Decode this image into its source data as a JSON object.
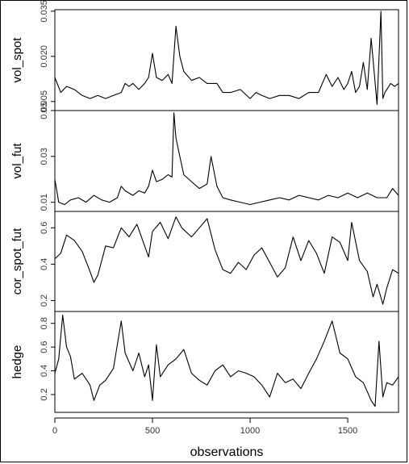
{
  "chart_data": {
    "type": "line",
    "xlabel": "observations",
    "xlim": [
      0,
      1760
    ],
    "x_ticks": [
      0,
      500,
      1000,
      1500
    ],
    "x_tick_labels": [
      "0",
      "500",
      "1000",
      "1500"
    ],
    "panels": [
      {
        "name": "vol_spot",
        "ylabel": "vol_spot",
        "ylim": [
          0.002,
          0.0355
        ],
        "y_ticks": [
          0.005,
          0.02,
          0.035
        ],
        "y_tick_labels": [
          "0.005",
          "0.020",
          "0.035"
        ],
        "x": [
          0,
          30,
          60,
          100,
          140,
          180,
          220,
          260,
          300,
          340,
          360,
          380,
          400,
          430,
          460,
          480,
          500,
          520,
          550,
          580,
          600,
          620,
          640,
          660,
          700,
          740,
          780,
          800,
          830,
          860,
          900,
          950,
          1000,
          1030,
          1060,
          1100,
          1150,
          1200,
          1250,
          1300,
          1350,
          1390,
          1420,
          1450,
          1480,
          1500,
          1520,
          1540,
          1560,
          1580,
          1600,
          1620,
          1650,
          1670,
          1680,
          1690,
          1700,
          1720,
          1740,
          1760
        ],
        "y": [
          0.013,
          0.008,
          0.01,
          0.009,
          0.007,
          0.006,
          0.007,
          0.006,
          0.007,
          0.008,
          0.011,
          0.01,
          0.011,
          0.009,
          0.011,
          0.013,
          0.021,
          0.013,
          0.012,
          0.014,
          0.011,
          0.03,
          0.02,
          0.015,
          0.012,
          0.013,
          0.011,
          0.011,
          0.011,
          0.008,
          0.008,
          0.009,
          0.006,
          0.008,
          0.007,
          0.006,
          0.007,
          0.007,
          0.006,
          0.008,
          0.008,
          0.014,
          0.01,
          0.013,
          0.009,
          0.011,
          0.015,
          0.008,
          0.01,
          0.018,
          0.009,
          0.026,
          0.004,
          0.035,
          0.006,
          0.008,
          0.009,
          0.011,
          0.01,
          0.011
        ]
      },
      {
        "name": "vol_fut",
        "ylabel": "vol_fut",
        "ylim": [
          0.006,
          0.05
        ],
        "y_ticks": [
          0.01,
          0.03,
          0.05
        ],
        "y_tick_labels": [
          "0.01",
          "0.03",
          "0.05"
        ],
        "x": [
          0,
          20,
          50,
          80,
          120,
          160,
          200,
          240,
          280,
          320,
          340,
          360,
          400,
          430,
          460,
          480,
          500,
          520,
          550,
          580,
          600,
          610,
          620,
          640,
          660,
          700,
          740,
          780,
          800,
          830,
          860,
          900,
          950,
          1000,
          1050,
          1100,
          1150,
          1200,
          1250,
          1300,
          1350,
          1400,
          1450,
          1500,
          1550,
          1600,
          1650,
          1700,
          1730,
          1760
        ],
        "y": [
          0.02,
          0.01,
          0.009,
          0.011,
          0.012,
          0.01,
          0.013,
          0.011,
          0.01,
          0.012,
          0.017,
          0.015,
          0.013,
          0.015,
          0.014,
          0.017,
          0.024,
          0.019,
          0.02,
          0.022,
          0.021,
          0.049,
          0.038,
          0.03,
          0.022,
          0.019,
          0.016,
          0.018,
          0.03,
          0.017,
          0.012,
          0.011,
          0.01,
          0.009,
          0.01,
          0.011,
          0.012,
          0.011,
          0.013,
          0.012,
          0.011,
          0.013,
          0.012,
          0.014,
          0.012,
          0.014,
          0.012,
          0.012,
          0.016,
          0.013
        ]
      },
      {
        "name": "cor_spot_fut",
        "ylabel": "cor_spot_fut",
        "ylim": [
          0.14,
          0.69
        ],
        "y_ticks": [
          0.2,
          0.4,
          0.6
        ],
        "y_tick_labels": [
          "0.2",
          "0.4",
          "0.6"
        ],
        "x": [
          0,
          30,
          60,
          100,
          140,
          180,
          200,
          220,
          260,
          300,
          340,
          380,
          420,
          460,
          480,
          500,
          540,
          580,
          620,
          650,
          700,
          740,
          780,
          820,
          860,
          900,
          940,
          980,
          1020,
          1060,
          1100,
          1140,
          1180,
          1220,
          1260,
          1300,
          1340,
          1380,
          1420,
          1460,
          1500,
          1520,
          1560,
          1600,
          1630,
          1650,
          1680,
          1700,
          1730,
          1760
        ],
        "y": [
          0.43,
          0.46,
          0.56,
          0.53,
          0.47,
          0.36,
          0.3,
          0.34,
          0.5,
          0.49,
          0.6,
          0.55,
          0.62,
          0.5,
          0.44,
          0.58,
          0.63,
          0.54,
          0.66,
          0.6,
          0.55,
          0.6,
          0.65,
          0.48,
          0.37,
          0.35,
          0.41,
          0.37,
          0.45,
          0.49,
          0.41,
          0.33,
          0.38,
          0.55,
          0.42,
          0.53,
          0.46,
          0.35,
          0.55,
          0.52,
          0.42,
          0.63,
          0.42,
          0.36,
          0.22,
          0.29,
          0.18,
          0.27,
          0.37,
          0.35
        ]
      },
      {
        "name": "hedge",
        "ylabel": "hedge",
        "ylim": [
          0.05,
          0.9
        ],
        "y_ticks": [
          0.2,
          0.4,
          0.6,
          0.8
        ],
        "y_tick_labels": [
          "0.2",
          "0.4",
          "0.6",
          "0.8"
        ],
        "x": [
          0,
          20,
          40,
          60,
          80,
          100,
          140,
          180,
          200,
          230,
          260,
          300,
          340,
          360,
          400,
          430,
          460,
          480,
          500,
          520,
          540,
          580,
          620,
          660,
          700,
          740,
          780,
          820,
          860,
          900,
          940,
          980,
          1020,
          1060,
          1100,
          1140,
          1180,
          1220,
          1260,
          1300,
          1340,
          1380,
          1420,
          1460,
          1500,
          1540,
          1580,
          1620,
          1640,
          1660,
          1680,
          1700,
          1730,
          1760
        ],
        "y": [
          0.38,
          0.5,
          0.87,
          0.6,
          0.52,
          0.33,
          0.38,
          0.28,
          0.15,
          0.28,
          0.32,
          0.42,
          0.82,
          0.55,
          0.4,
          0.55,
          0.35,
          0.45,
          0.15,
          0.62,
          0.35,
          0.45,
          0.5,
          0.58,
          0.38,
          0.32,
          0.28,
          0.4,
          0.45,
          0.35,
          0.4,
          0.38,
          0.35,
          0.28,
          0.18,
          0.38,
          0.3,
          0.33,
          0.25,
          0.38,
          0.5,
          0.65,
          0.82,
          0.55,
          0.5,
          0.35,
          0.3,
          0.15,
          0.1,
          0.65,
          0.18,
          0.3,
          0.28,
          0.35
        ]
      }
    ]
  }
}
